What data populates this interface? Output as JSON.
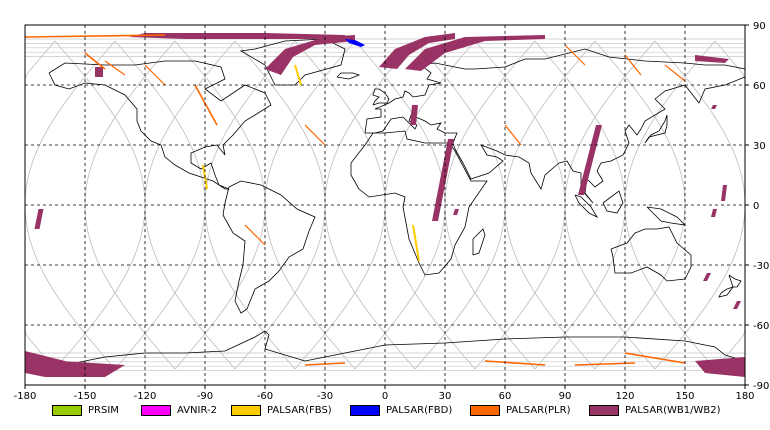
{
  "map": {
    "lon_range": [
      -180,
      180
    ],
    "lat_range": [
      -90,
      90
    ],
    "projection": "equirectangular",
    "grid": "dashed",
    "x_ticks": [
      -180,
      -150,
      -120,
      -90,
      -60,
      -30,
      0,
      30,
      60,
      90,
      120,
      150,
      180
    ],
    "y_ticks_right": [
      90,
      60,
      30,
      0,
      -30,
      -60,
      -90
    ]
  },
  "legend": [
    {
      "label": "PRSIM",
      "color": "#99cc00"
    },
    {
      "label": "AVNIR-2",
      "color": "#ff00ff"
    },
    {
      "label": "PALSAR(FBS)",
      "color": "#ffcc00"
    },
    {
      "label": "PALSAR(FBD)",
      "color": "#0000ff"
    },
    {
      "label": "PALSAR(PLR)",
      "color": "#ff6600"
    },
    {
      "label": "PALSAR(WB1/WB2)",
      "color": "#993366"
    }
  ]
}
